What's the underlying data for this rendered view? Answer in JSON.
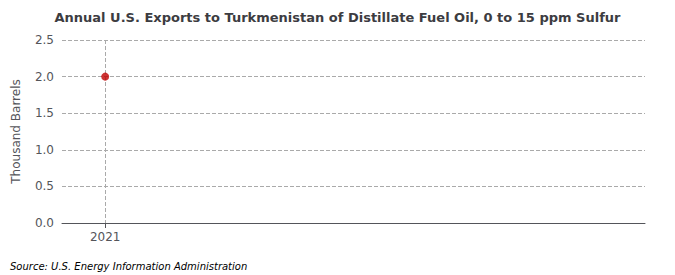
{
  "chart_data": {
    "type": "scatter",
    "title": "Annual U.S. Exports to Turkmenistan of Distillate Fuel Oil, 0 to 15 ppm Sulfur",
    "ylabel": "Thousand Barrels",
    "annotations": [
      "Source: U.S. Energy Information Administration"
    ],
    "x": [
      2021
    ],
    "values": [
      2.0
    ],
    "color": "#c00000",
    "marker": "circle",
    "xlim": [
      2020.6,
      2026.0
    ],
    "xticks": [
      2021
    ],
    "ylim": [
      0,
      2.5
    ],
    "yticks": [
      {
        "value": 0.0,
        "label": "0.0"
      },
      0.5,
      {
        "value": 1.0,
        "label": "1.0"
      },
      1.5,
      {
        "value": 2.0,
        "label": "2.0"
      },
      2.5
    ],
    "grid": true
  }
}
